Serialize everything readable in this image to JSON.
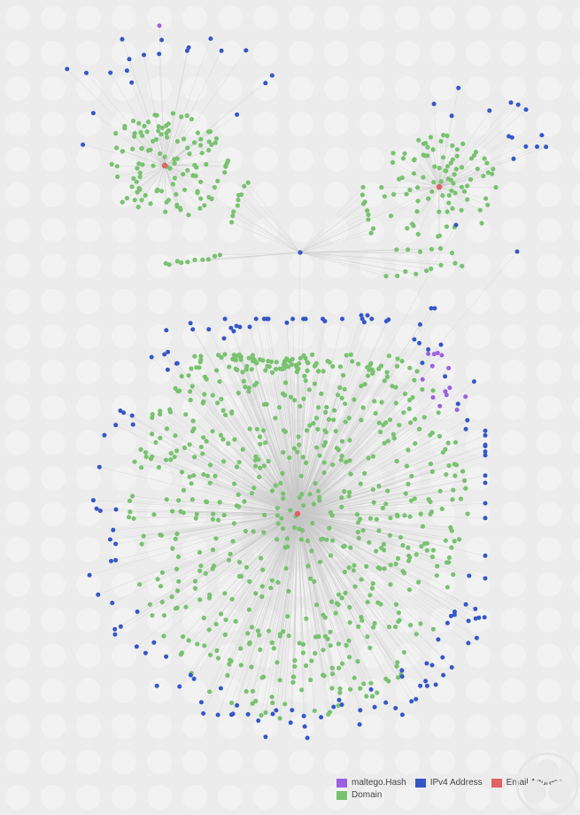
{
  "colors": {
    "background": "#ececec",
    "edge": "#c6c6c6",
    "hash": "#9a61e0",
    "ipv4": "#3457c8",
    "email": "#e06262",
    "domain": "#78c270"
  },
  "legend": {
    "items": [
      {
        "label": "maltego.Hash",
        "color": "#9a61e0"
      },
      {
        "label": "IPv4 Address",
        "color": "#3457c8"
      },
      {
        "label": "Email Address",
        "color": "#e06262"
      },
      {
        "label": "Domain",
        "color": "#78c270"
      }
    ]
  },
  "graph": {
    "hubs": [
      {
        "type": "email",
        "domains": 120,
        "ips": 20,
        "hashes": 1
      },
      {
        "type": "email",
        "domains": 90,
        "ips": 14,
        "hashes": 0
      },
      {
        "type": "email",
        "domains": 700,
        "ips": 140,
        "hashes": 14
      }
    ],
    "shared_ip_count": 1
  },
  "watermark": {
    "icon": "maltego-logo-icon"
  }
}
